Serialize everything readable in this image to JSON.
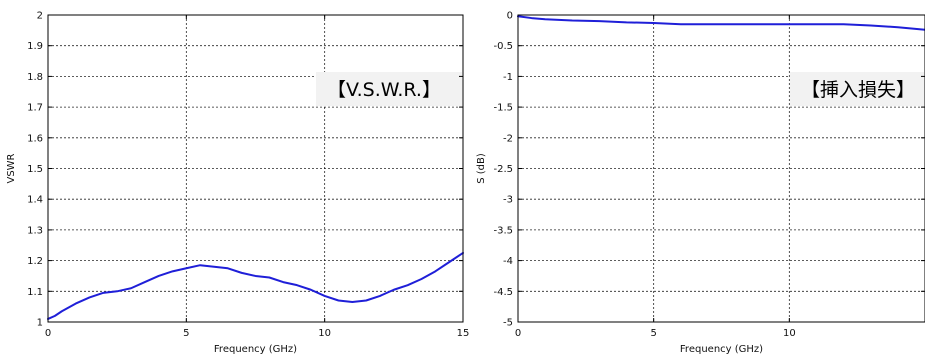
{
  "chart_data": [
    {
      "type": "line",
      "title": "",
      "xlabel": "Frequency (GHz)",
      "ylabel": "VSWR",
      "xlim": [
        0,
        15
      ],
      "ylim": [
        1,
        2
      ],
      "grid": true,
      "xticks": [
        "0",
        "5",
        "10",
        "15"
      ],
      "yticks": [
        "1",
        "1.1",
        "1.2",
        "1.3",
        "1.4",
        "1.5",
        "1.6",
        "1.7",
        "1.8",
        "1.9",
        "2"
      ],
      "xtick_values": [
        0,
        5,
        10,
        15
      ],
      "ytick_values": [
        1,
        1.1,
        1.2,
        1.3,
        1.4,
        1.5,
        1.6,
        1.7,
        1.8,
        1.9,
        2
      ],
      "annotation": "【V.S.W.R.】",
      "color": "#1f1fd8",
      "series": [
        {
          "x": [
            0,
            0.25,
            0.5,
            1,
            1.5,
            2,
            2.5,
            3,
            3.5,
            4,
            4.5,
            5,
            5.5,
            6,
            6.5,
            7,
            7.5,
            8,
            8.5,
            9,
            9.5,
            10,
            10.5,
            11,
            11.5,
            12,
            12.5,
            13,
            13.5,
            14,
            14.5,
            15
          ],
          "values": [
            1.01,
            1.02,
            1.035,
            1.06,
            1.08,
            1.095,
            1.1,
            1.11,
            1.13,
            1.15,
            1.165,
            1.175,
            1.185,
            1.18,
            1.175,
            1.16,
            1.15,
            1.145,
            1.13,
            1.12,
            1.105,
            1.085,
            1.07,
            1.065,
            1.07,
            1.085,
            1.105,
            1.12,
            1.14,
            1.165,
            1.195,
            1.225
          ]
        }
      ]
    },
    {
      "type": "line",
      "title": "",
      "xlabel": "Frequency (GHz)",
      "ylabel": "S (dB)",
      "xlim": [
        0,
        15
      ],
      "ylim": [
        -5,
        0
      ],
      "grid": true,
      "xticks": [
        "0",
        "5",
        "10"
      ],
      "yticks": [
        "0",
        "-0.5",
        "-1",
        "-1.5",
        "-2",
        "-2.5",
        "-3",
        "-3.5",
        "-4",
        "-4.5",
        "-5"
      ],
      "xtick_values": [
        0,
        5,
        10
      ],
      "ytick_values": [
        0,
        -0.5,
        -1,
        -1.5,
        -2,
        -2.5,
        -3,
        -3.5,
        -4,
        -4.5,
        -5
      ],
      "annotation": "【挿入損失】",
      "color": "#1f1fd8",
      "series": [
        {
          "x": [
            0,
            0.5,
            1,
            2,
            3,
            4,
            5,
            6,
            7,
            8,
            9,
            10,
            11,
            12,
            13,
            14,
            14.5,
            15
          ],
          "values": [
            -0.02,
            -0.05,
            -0.07,
            -0.09,
            -0.1,
            -0.12,
            -0.13,
            -0.15,
            -0.15,
            -0.15,
            -0.15,
            -0.15,
            -0.15,
            -0.15,
            -0.17,
            -0.2,
            -0.22,
            -0.24
          ]
        }
      ]
    }
  ]
}
